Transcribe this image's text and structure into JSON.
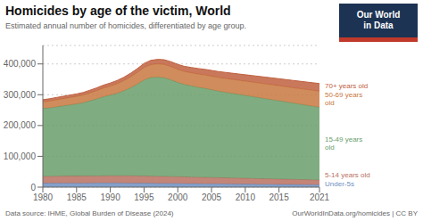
{
  "chart_data": {
    "type": "area",
    "title": "Homicides by age of the victim, World",
    "subtitle": "Estimated annual number of homicides, differentiated by age group.",
    "annotations": [
      "Data source: IHME, Global Burden of Disease (2024)",
      "OurWorldInData.org/homicides | CC BY",
      "Our World\nin Data"
    ],
    "stacked": true,
    "grid": true,
    "x": [
      1980,
      1981,
      1982,
      1983,
      1984,
      1985,
      1986,
      1987,
      1988,
      1989,
      1990,
      1991,
      1992,
      1993,
      1994,
      1995,
      1996,
      1997,
      1998,
      1999,
      2000,
      2001,
      2002,
      2003,
      2004,
      2005,
      2006,
      2007,
      2008,
      2009,
      2010,
      2011,
      2012,
      2013,
      2014,
      2015,
      2016,
      2017,
      2018,
      2019,
      2020,
      2021
    ],
    "xlim": [
      1980,
      2021
    ],
    "xticks": [
      1980,
      1985,
      1990,
      1995,
      2000,
      2005,
      2010,
      2015,
      2021
    ],
    "ylim": [
      0,
      460000
    ],
    "yticks": [
      0,
      {
        "value": 100000,
        "label": "100,000"
      },
      {
        "value": 200000,
        "label": "200,000"
      },
      {
        "value": 300000,
        "label": "300,000"
      },
      {
        "value": 400000,
        "label": "400,000"
      }
    ],
    "series": [
      {
        "name": "Under-5s",
        "color": "#6e8fc0",
        "values": [
          13000,
          13100,
          13200,
          13300,
          13300,
          13300,
          13300,
          13300,
          13400,
          13500,
          13500,
          13400,
          13300,
          13200,
          13100,
          13000,
          12800,
          12600,
          12400,
          12200,
          12000,
          11800,
          11600,
          11400,
          11200,
          11000,
          10800,
          10600,
          10400,
          10200,
          10000,
          9800,
          9600,
          9400,
          9200,
          9000,
          8800,
          8600,
          8400,
          8200,
          8000,
          7800
        ]
      },
      {
        "name": "5-14 years old",
        "color": "#b87060",
        "values": [
          22000,
          22200,
          22400,
          22600,
          22700,
          22800,
          22900,
          23000,
          23100,
          23200,
          23300,
          23400,
          23500,
          23500,
          23400,
          23200,
          23000,
          22700,
          22400,
          22100,
          21800,
          21500,
          21200,
          20900,
          20600,
          20300,
          20000,
          19700,
          19400,
          19100,
          18800,
          18500,
          18200,
          17900,
          17600,
          17300,
          17000,
          16700,
          16400,
          16100,
          15800,
          15500
        ]
      },
      {
        "name": "15-49 years\nold",
        "color": "#6a9e6b",
        "values": [
          220000,
          222000,
          225000,
          228000,
          231000,
          234000,
          238000,
          244000,
          250000,
          257000,
          262000,
          268000,
          276000,
          286000,
          298000,
          312000,
          320000,
          322000,
          320000,
          314000,
          306000,
          300000,
          296000,
          292000,
          289000,
          285000,
          281000,
          278000,
          275000,
          272000,
          269000,
          266000,
          263000,
          260000,
          257000,
          254000,
          251000,
          248000,
          245000,
          242000,
          239000,
          236000
        ]
      },
      {
        "name": "50-69 years\nold",
        "color": "#c87840",
        "values": [
          22000,
          22500,
          23000,
          23500,
          24000,
          24500,
          25000,
          26000,
          27000,
          28200,
          29500,
          31000,
          33000,
          35500,
          38000,
          40500,
          42000,
          43000,
          43500,
          43000,
          42500,
          42000,
          42500,
          43000,
          43500,
          44000,
          44500,
          45000,
          45500,
          46000,
          46500,
          47000,
          47500,
          48000,
          48500,
          49000,
          49500,
          50000,
          50500,
          51000,
          51500,
          52000
        ]
      },
      {
        "name": "70+ years old",
        "color": "#c06040",
        "values": [
          7000,
          7200,
          7400,
          7600,
          7800,
          8000,
          8300,
          8600,
          9000,
          9400,
          9800,
          10300,
          10900,
          11500,
          12200,
          13000,
          13800,
          14500,
          15200,
          15800,
          16300,
          16800,
          17300,
          17800,
          18200,
          18600,
          19000,
          19400,
          19800,
          20200,
          20600,
          21000,
          21400,
          21800,
          22200,
          22600,
          23000,
          23400,
          23800,
          24200,
          24600,
          25000
        ]
      }
    ]
  }
}
